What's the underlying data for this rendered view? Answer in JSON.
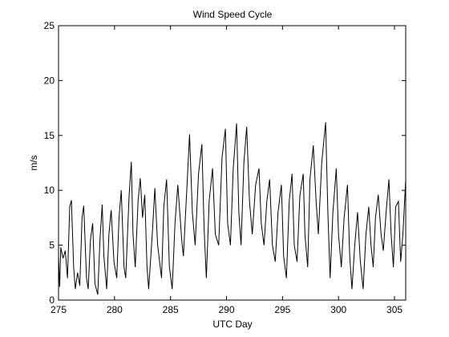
{
  "chart_data": {
    "type": "line",
    "title": "Wind Speed Cycle",
    "xlabel": "UTC Day",
    "ylabel": "m/s",
    "x": [
      275,
      275.1,
      275.2,
      275.4,
      275.6,
      275.8,
      276.0,
      276.15,
      276.35,
      276.5,
      276.7,
      276.9,
      277.1,
      277.25,
      277.5,
      277.65,
      277.85,
      278.05,
      278.25,
      278.5,
      278.7,
      278.9,
      279.05,
      279.3,
      279.5,
      279.7,
      279.95,
      280.2,
      280.4,
      280.6,
      280.85,
      281.0,
      281.3,
      281.5,
      281.65,
      281.85,
      282.1,
      282.3,
      282.5,
      282.7,
      282.9,
      283.05,
      283.4,
      283.6,
      283.85,
      284.2,
      284.4,
      284.65,
      284.9,
      285.15,
      285.4,
      285.65,
      286.0,
      286.15,
      286.45,
      286.7,
      286.95,
      287.2,
      287.5,
      287.8,
      288.0,
      288.2,
      288.45,
      288.75,
      289.0,
      289.3,
      289.6,
      289.9,
      290.1,
      290.35,
      290.6,
      290.9,
      291.1,
      291.3,
      291.55,
      291.8,
      292.05,
      292.3,
      292.6,
      292.9,
      293.1,
      293.35,
      293.6,
      293.85,
      294.1,
      294.35,
      294.6,
      294.9,
      295.1,
      295.35,
      295.6,
      295.85,
      296.05,
      296.3,
      296.55,
      296.85,
      297.0,
      297.25,
      297.45,
      297.75,
      298.0,
      298.2,
      298.5,
      298.85,
      299.05,
      299.25,
      299.5,
      299.8,
      300.0,
      300.25,
      300.5,
      300.8,
      301.0,
      301.2,
      301.45,
      301.7,
      301.95,
      302.2,
      302.45,
      302.7,
      302.9,
      303.1,
      303.3,
      303.55,
      303.8,
      304.0,
      304.25,
      304.5,
      304.7,
      304.9,
      305.1,
      305.35,
      305.55,
      305.75,
      306.0
    ],
    "values": [
      4.0,
      1.2,
      4.8,
      3.8,
      4.5,
      2.0,
      8.5,
      9.1,
      3.0,
      1.0,
      2.5,
      1.3,
      7.5,
      8.6,
      2.0,
      1.0,
      5.5,
      7.0,
      1.5,
      0.5,
      5.5,
      8.7,
      4.0,
      1.0,
      6.0,
      8.2,
      3.5,
      2.0,
      7.5,
      10.0,
      3.0,
      2.0,
      9.5,
      12.6,
      6.0,
      3.0,
      9.0,
      11.1,
      7.5,
      9.6,
      3.0,
      1.0,
      6.5,
      10.2,
      5.0,
      2.0,
      8.5,
      11.0,
      3.0,
      1.0,
      7.0,
      10.5,
      5.5,
      4.0,
      10.0,
      15.1,
      8.0,
      5.0,
      11.5,
      14.2,
      6.5,
      2.0,
      9.0,
      12.0,
      6.0,
      5.0,
      13.0,
      15.6,
      7.0,
      5.0,
      12.0,
      16.1,
      8.0,
      5.0,
      12.5,
      15.8,
      9.0,
      6.0,
      10.5,
      12.0,
      7.0,
      5.0,
      9.0,
      11.0,
      5.0,
      3.5,
      8.0,
      10.5,
      4.0,
      2.0,
      9.0,
      11.5,
      5.0,
      3.5,
      9.5,
      11.5,
      6.0,
      3.0,
      11.0,
      14.1,
      9.0,
      6.0,
      12.5,
      16.2,
      8.0,
      2.0,
      8.0,
      12.0,
      6.0,
      3.0,
      7.5,
      10.5,
      4.0,
      1.0,
      5.0,
      8.0,
      3.5,
      1.0,
      6.0,
      8.5,
      5.0,
      3.0,
      7.5,
      9.6,
      6.0,
      4.5,
      8.0,
      11.0,
      6.0,
      3.0,
      8.5,
      9.0,
      3.5,
      6.0,
      11.0
    ],
    "color": "#000000",
    "xlim": [
      275,
      306
    ],
    "xticks": [
      275,
      280,
      285,
      290,
      295,
      300,
      305
    ],
    "ylim": [
      0,
      25
    ],
    "yticks": [
      0,
      5,
      10,
      15,
      20,
      25
    ],
    "grid": false
  }
}
